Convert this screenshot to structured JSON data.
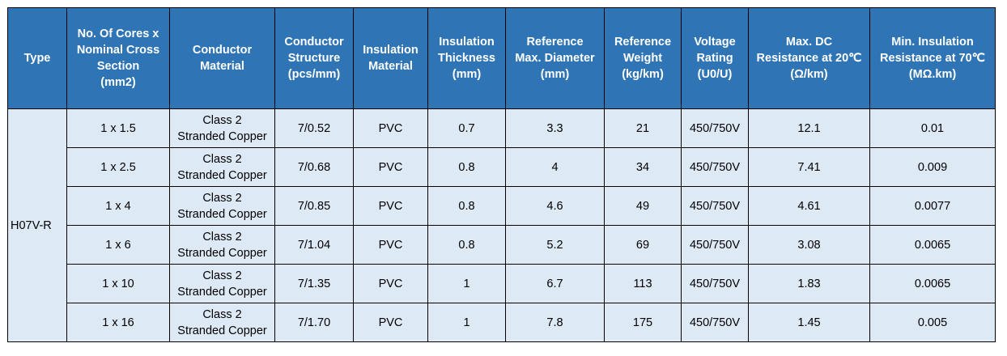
{
  "table": {
    "headers": [
      "Type",
      "No. Of Cores x\nNominal Cross\nSection\n(mm2)",
      "Conductor\nMaterial",
      "Conductor\nStructure\n(pcs/mm)",
      "Insulation\nMaterial",
      "Insulation\nThickness\n(mm)",
      "Reference\nMax. Diameter\n(mm)",
      "Reference\nWeight\n(kg/km)",
      "Voltage\nRating\n(U0/U)",
      "Max. DC\nResistance at 20℃\n(Ω/km)",
      "Min. Insulation\nResistance at 70℃\n(MΩ.km)"
    ],
    "type": "H07V-R",
    "rows": [
      {
        "cores": "1 x 1.5",
        "material_line1": "Class 2",
        "material_line2": "Stranded Copper",
        "structure": "7/0.52",
        "insulation": "PVC",
        "thickness": "0.7",
        "diameter": "3.3",
        "weight": "21",
        "voltage": "450/750V",
        "dc_resistance": "12.1",
        "ins_resistance": "0.01"
      },
      {
        "cores": "1 x 2.5",
        "material_line1": "Class 2",
        "material_line2": "Stranded Copper",
        "structure": "7/0.68",
        "insulation": "PVC",
        "thickness": "0.8",
        "diameter": "4",
        "weight": "34",
        "voltage": "450/750V",
        "dc_resistance": "7.41",
        "ins_resistance": "0.009"
      },
      {
        "cores": "1 x 4",
        "material_line1": "Class 2",
        "material_line2": "Stranded Copper",
        "structure": "7/0.85",
        "insulation": "PVC",
        "thickness": "0.8",
        "diameter": "4.6",
        "weight": "49",
        "voltage": "450/750V",
        "dc_resistance": "4.61",
        "ins_resistance": "0.0077"
      },
      {
        "cores": "1 x 6",
        "material_line1": "Class 2",
        "material_line2": "Stranded Copper",
        "structure": "7/1.04",
        "insulation": "PVC",
        "thickness": "0.8",
        "diameter": "5.2",
        "weight": "69",
        "voltage": "450/750V",
        "dc_resistance": "3.08",
        "ins_resistance": "0.0065"
      },
      {
        "cores": "1 x 10",
        "material_line1": "Class 2",
        "material_line2": "Stranded Copper",
        "structure": "7/1.35",
        "insulation": "PVC",
        "thickness": "1",
        "diameter": "6.7",
        "weight": "113",
        "voltage": "450/750V",
        "dc_resistance": "1.83",
        "ins_resistance": "0.0065"
      },
      {
        "cores": "1 x 16",
        "material_line1": "Class 2",
        "material_line2": "Stranded Copper",
        "structure": "7/1.70",
        "insulation": "PVC",
        "thickness": "1",
        "diameter": "7.8",
        "weight": "175",
        "voltage": "450/750V",
        "dc_resistance": "1.45",
        "ins_resistance": "0.005"
      }
    ]
  },
  "colors": {
    "header_bg": "#2f75b6",
    "header_text": "#ffffff",
    "body_bg": "#dde9f5",
    "border": "#000000"
  }
}
